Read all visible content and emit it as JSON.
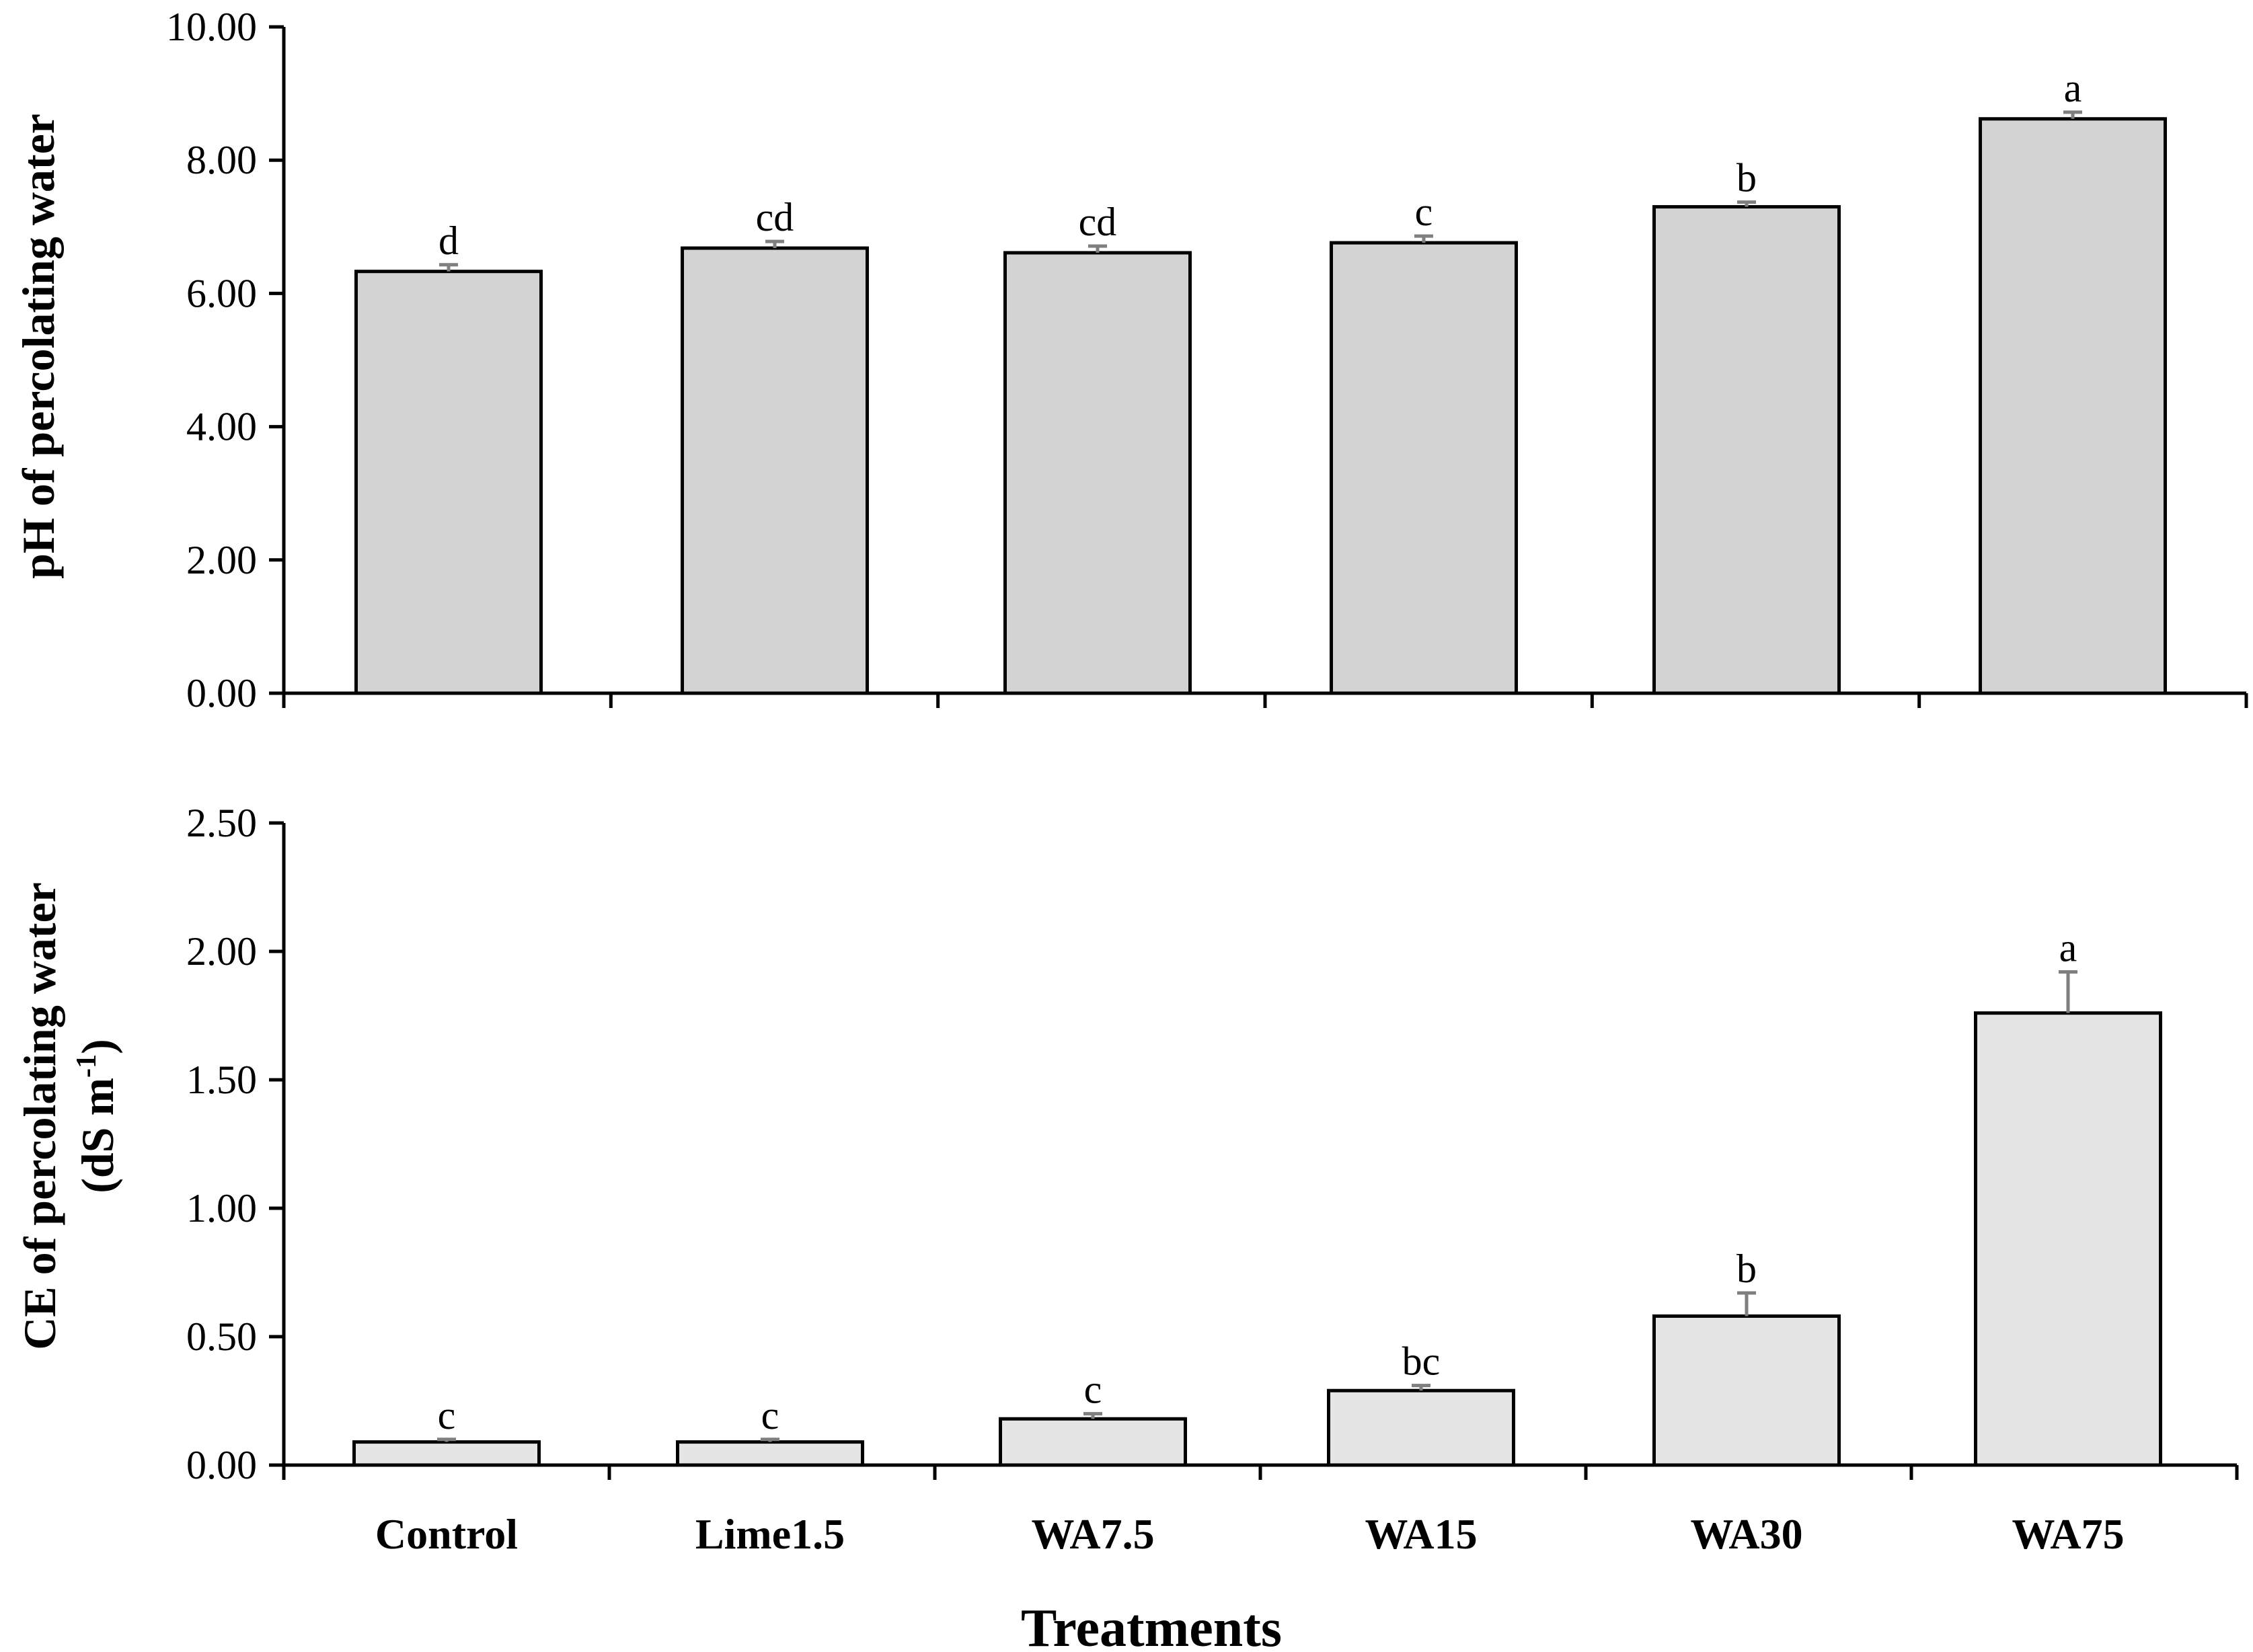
{
  "chart_data": [
    {
      "type": "bar",
      "id": "ph",
      "categories": [
        "Control",
        "Lime1.5",
        "WA7.5",
        "WA15",
        "WA30",
        "WA75"
      ],
      "values": [
        6.33,
        6.68,
        6.61,
        6.76,
        7.3,
        8.62
      ],
      "errors": [
        0.1,
        0.1,
        0.1,
        0.1,
        0.07,
        0.1
      ],
      "letters": [
        "d",
        "cd",
        "cd",
        "c",
        "b",
        "a"
      ],
      "ylabel": "pH of percolating water",
      "ylim": [
        0,
        10
      ],
      "yticks": [
        "0.00",
        "2.00",
        "4.00",
        "6.00",
        "8.00",
        "10.00"
      ],
      "bar_color": "#d3d3d3",
      "error_color": "#7f7f7f"
    },
    {
      "type": "bar",
      "id": "ce",
      "categories": [
        "Control",
        "Lime1.5",
        "WA7.5",
        "WA15",
        "WA30",
        "WA75"
      ],
      "values": [
        0.09,
        0.09,
        0.18,
        0.29,
        0.58,
        1.76
      ],
      "errors": [
        0.01,
        0.01,
        0.02,
        0.02,
        0.09,
        0.16
      ],
      "letters": [
        "c",
        "c",
        "c",
        "bc",
        "b",
        "a"
      ],
      "ylabel": "CE of percolating water",
      "ylabel_units": {
        "prefix": "(dS m",
        "sup": "-1",
        "suffix": ")"
      },
      "ylim": [
        0,
        2.5
      ],
      "yticks": [
        "0.00",
        "0.50",
        "1.00",
        "1.50",
        "2.00",
        "2.50"
      ],
      "xlabel": "Treatments",
      "bar_color": "#e5e5e5",
      "error_color": "#7f7f7f"
    }
  ]
}
